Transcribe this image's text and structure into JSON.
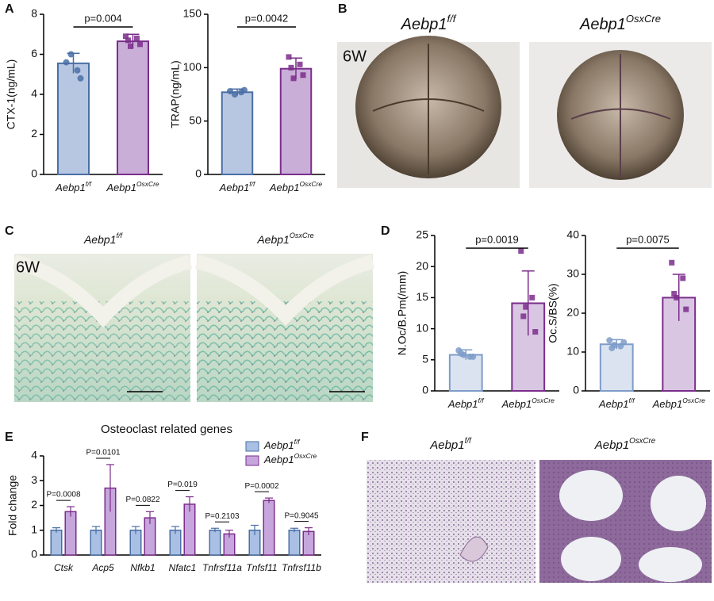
{
  "panel_letters": [
    "A",
    "B",
    "C",
    "D",
    "E",
    "F"
  ],
  "panels": {
    "B": {
      "titles": [
        "Aebp1f/f",
        "Aebp1OsxCre"
      ],
      "tag": "6W"
    },
    "C": {
      "titles": [
        "Aebp1f/f",
        "Aebp1OsxCre"
      ],
      "tag": "6W"
    },
    "F": {
      "titles": [
        "Aebp1f/f",
        "Aebp1OsxCre"
      ]
    }
  },
  "chart_data": [
    {
      "type": "bar",
      "ylabel": "CTX-1(ng/mL)",
      "categories": [
        "Aebp1f/f",
        "Aebp1OsxCre"
      ],
      "values": [
        5.55,
        6.65
      ],
      "errors": [
        0.5,
        0.35
      ],
      "points": [
        [
          5.6,
          5.2,
          6.0,
          4.8
        ],
        [
          6.9,
          6.8,
          6.4,
          6.5,
          6.7
        ]
      ],
      "colors": [
        "#b7c7e2",
        "#c9aed8"
      ],
      "edge_colors": [
        "#4a6fa5",
        "#7b2d8b"
      ],
      "ylim": [
        0,
        8
      ],
      "yticks": [
        0,
        2,
        4,
        6,
        8
      ],
      "annotation": "p=0.004"
    },
    {
      "type": "bar",
      "ylabel": "TRAP(ng/mL)",
      "categories": [
        "Aebp1f/f",
        "Aebp1OsxCre"
      ],
      "values": [
        77,
        99
      ],
      "errors": [
        3,
        10
      ],
      "points": [
        [
          78,
          77,
          75,
          79
        ],
        [
          110,
          103,
          90,
          93,
          100
        ]
      ],
      "colors": [
        "#b7c7e2",
        "#c9aed8"
      ],
      "edge_colors": [
        "#4a6fa5",
        "#7b2d8b"
      ],
      "ylim": [
        0,
        150
      ],
      "yticks": [
        0,
        50,
        100,
        150
      ],
      "annotation": "p=0.0042"
    },
    {
      "type": "bar",
      "ylabel": "N.Oc/B.Pm(/mm)",
      "categories": [
        "Aebp1f/f",
        "Aebp1OsxCre"
      ],
      "values": [
        5.8,
        14.1
      ],
      "errors": [
        0.8,
        5.2
      ],
      "points": [
        [
          6.5,
          5.5,
          5.8,
          5.5,
          6.0
        ],
        [
          22.5,
          15,
          13.5,
          9.5,
          12
        ]
      ],
      "colors": [
        "#dbe3f1",
        "#d9c6e3"
      ],
      "edge_colors": [
        "#7e9cc9",
        "#7b2d8b"
      ],
      "ylim": [
        0,
        25
      ],
      "yticks": [
        0,
        5,
        10,
        15,
        20,
        25
      ],
      "annotation": "p=0.0019"
    },
    {
      "type": "bar",
      "ylabel": "Oc.S/BS(%)",
      "categories": [
        "Aebp1f/f",
        "Aebp1OsxCre"
      ],
      "values": [
        12,
        24
      ],
      "errors": [
        1.2,
        6
      ],
      "points": [
        [
          13,
          11.5,
          11.8,
          12.5,
          11
        ],
        [
          33,
          29,
          24,
          21,
          25
        ]
      ],
      "colors": [
        "#dbe3f1",
        "#d9c6e3"
      ],
      "edge_colors": [
        "#7e9cc9",
        "#7b2d8b"
      ],
      "ylim": [
        0,
        40
      ],
      "yticks": [
        0,
        10,
        20,
        30,
        40
      ],
      "annotation": "p=0.0075"
    },
    {
      "type": "grouped_bar",
      "title": "Osteoclast related genes",
      "ylabel": "Fold change",
      "categories": [
        "Ctsk",
        "Acp5",
        "Nfkb1",
        "Nfatc1",
        "Tnfrsf11a",
        "Tnfsf11",
        "Tnfrsf11b"
      ],
      "series": [
        {
          "name": "Aebp1f/f",
          "color": "#a9bfe3",
          "edge_color": "#4a6fa5",
          "values": [
            1,
            1,
            1,
            1,
            1,
            1,
            1
          ],
          "errors": [
            0.1,
            0.15,
            0.15,
            0.15,
            0.08,
            0.2,
            0.08
          ]
        },
        {
          "name": "Aebp1OsxCre",
          "color": "#c6a6dc",
          "edge_color": "#7b2d8b",
          "values": [
            1.75,
            2.7,
            1.5,
            2.05,
            0.85,
            2.2,
            0.95
          ],
          "errors": [
            0.2,
            0.95,
            0.25,
            0.3,
            0.15,
            0.1,
            0.15
          ]
        }
      ],
      "annotations": [
        "P=0.0008",
        "P=0.0101",
        "P=0.0822",
        "P=0.019",
        "P=0.2103",
        "P=0.0002",
        "P=0.9045"
      ],
      "ylim": [
        0,
        4
      ],
      "yticks": [
        0,
        1,
        2,
        3,
        4
      ]
    }
  ]
}
